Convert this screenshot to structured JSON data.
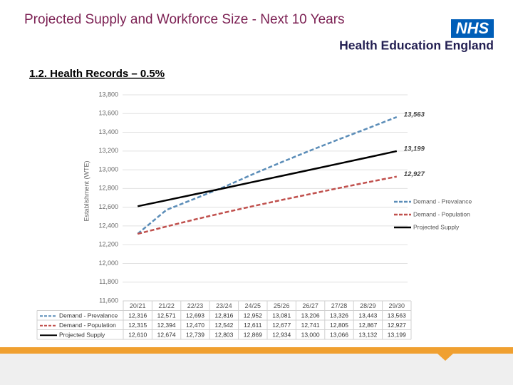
{
  "header": {
    "title": "Projected Supply and Workforce Size - Next 10 Years",
    "logo": "NHS",
    "org": "Health Education England",
    "subtitle": "1.2. Health Records – 0.5%"
  },
  "chart_data": {
    "type": "line",
    "y_label": "Establishment (WTE)",
    "categories": [
      "20/21",
      "21/22",
      "22/23",
      "23/24",
      "24/25",
      "25/26",
      "26/27",
      "27/28",
      "28/29",
      "29/30"
    ],
    "series": [
      {
        "name": "Demand - Prevalance",
        "color": "#5b8db8",
        "dashed": true,
        "values": [
          12316,
          12571,
          12693,
          12816,
          12952,
          13081,
          13206,
          13326,
          13443,
          13563
        ],
        "value_labels": [
          "12,316",
          "12,571",
          "12,693",
          "12,816",
          "12,952",
          "13,081",
          "13,206",
          "13,326",
          "13,443",
          "13,563"
        ]
      },
      {
        "name": "Demand - Population",
        "color": "#c0504d",
        "dashed": true,
        "values": [
          12315,
          12394,
          12470,
          12542,
          12611,
          12677,
          12741,
          12805,
          12867,
          12927
        ],
        "value_labels": [
          "12,315",
          "12,394",
          "12,470",
          "12,542",
          "12,611",
          "12,677",
          "12,741",
          "12,805",
          "12,867",
          "12,927"
        ]
      },
      {
        "name": "Projected Supply",
        "color": "#000000",
        "dashed": false,
        "values": [
          12610,
          12674,
          12739,
          12803,
          12869,
          12934,
          13000,
          13066,
          13132,
          13199
        ],
        "value_labels": [
          "12,610",
          "12,674",
          "12,739",
          "12,803",
          "12,869",
          "12,934",
          "13,000",
          "13,066",
          "13,132",
          "13,199"
        ]
      }
    ],
    "ylim": [
      11600,
      13800
    ],
    "yticks": [
      {
        "value": 11600,
        "label": "11,600"
      },
      {
        "value": 11800,
        "label": "11,800"
      },
      {
        "value": 12000,
        "label": "12,000"
      },
      {
        "value": 12200,
        "label": "12,200"
      },
      {
        "value": 12400,
        "label": "12,400"
      },
      {
        "value": 12600,
        "label": "12,600"
      },
      {
        "value": 12800,
        "label": "12,800"
      },
      {
        "value": 13000,
        "label": "13,000"
      },
      {
        "value": 13200,
        "label": "13,200"
      },
      {
        "value": 13400,
        "label": "13,400"
      },
      {
        "value": 13600,
        "label": "13,600"
      },
      {
        "value": 13800,
        "label": "13,800"
      }
    ],
    "grid": true,
    "legend": "right"
  }
}
